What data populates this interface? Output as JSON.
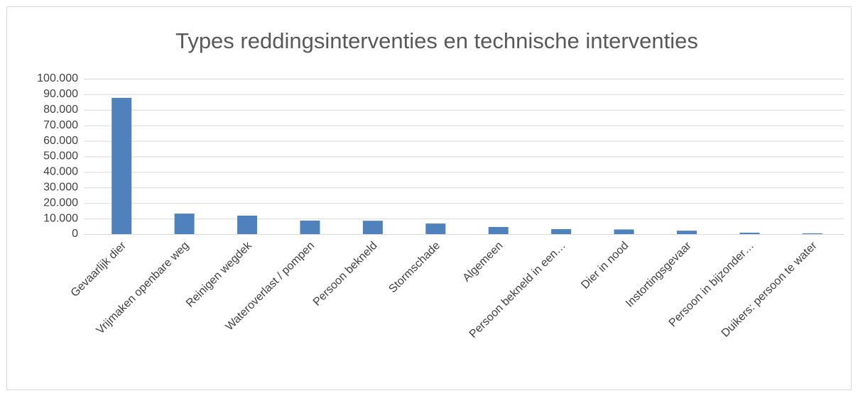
{
  "chart_data": {
    "type": "bar",
    "title": "Types reddingsinterventies en technische interventies",
    "categories": [
      "Gevaarlijk dier",
      "Vrijmaken openbare weg",
      "Reinigen wegdek",
      "Wateroverlast / pompen",
      "Persoon bekneld",
      "Stormschade",
      "Algemeen",
      "Persoon bekneld in een…",
      "Dier in nood",
      "Instortingsgevaar",
      "Persoon in bijzonder…",
      "Duikers: persoon te water"
    ],
    "values": [
      87700,
      13200,
      11900,
      8700,
      8600,
      6800,
      4600,
      3200,
      3000,
      2200,
      900,
      500
    ],
    "color": "#4f81bd",
    "ylim": [
      0,
      100000
    ],
    "yticks": [
      0,
      {
        "value": 10000,
        "label": "10.000"
      },
      {
        "value": 20000,
        "label": "20.000"
      },
      {
        "value": 30000,
        "label": "30.000"
      },
      {
        "value": 40000,
        "label": "40.000"
      },
      {
        "value": 50000,
        "label": "50.000"
      },
      {
        "value": 60000,
        "label": "60.000"
      },
      {
        "value": 70000,
        "label": "70.000"
      },
      {
        "value": 80000,
        "label": "80.000"
      },
      {
        "value": 90000,
        "label": "90.000"
      },
      {
        "value": 100000,
        "label": "100.000"
      }
    ],
    "grid": true
  }
}
